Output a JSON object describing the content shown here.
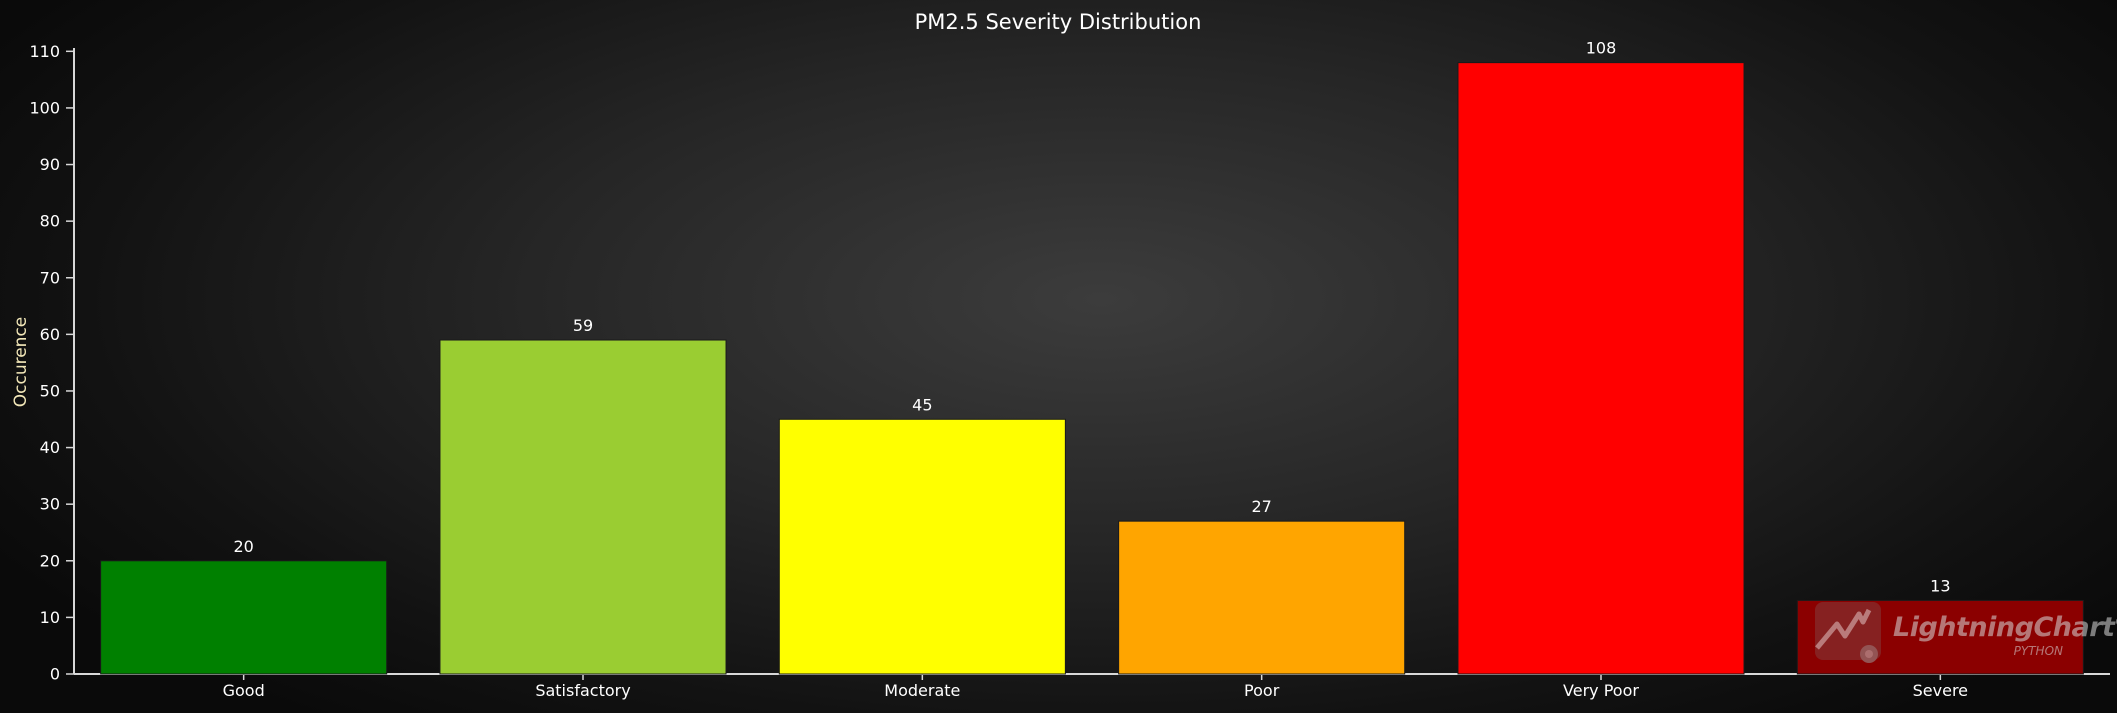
{
  "chart_data": {
    "type": "bar",
    "title": "PM2.5 Severity Distribution",
    "xlabel": "",
    "ylabel": "Occurence",
    "categories": [
      "Good",
      "Satisfactory",
      "Moderate",
      "Poor",
      "Very Poor",
      "Severe"
    ],
    "values": [
      20,
      59,
      45,
      27,
      108,
      13
    ],
    "colors": [
      "#008000",
      "#9acd32",
      "#ffff00",
      "#ffa500",
      "#ff0000",
      "#8b0000"
    ],
    "ylim": [
      0,
      110
    ],
    "yticks": [
      0,
      10,
      20,
      30,
      40,
      50,
      60,
      70,
      80,
      90,
      100,
      110
    ],
    "data_labels": true,
    "grid": false,
    "legend": "none"
  },
  "watermark": {
    "brand": "LightningChart",
    "registered": "®",
    "sub": "PYTHON"
  }
}
